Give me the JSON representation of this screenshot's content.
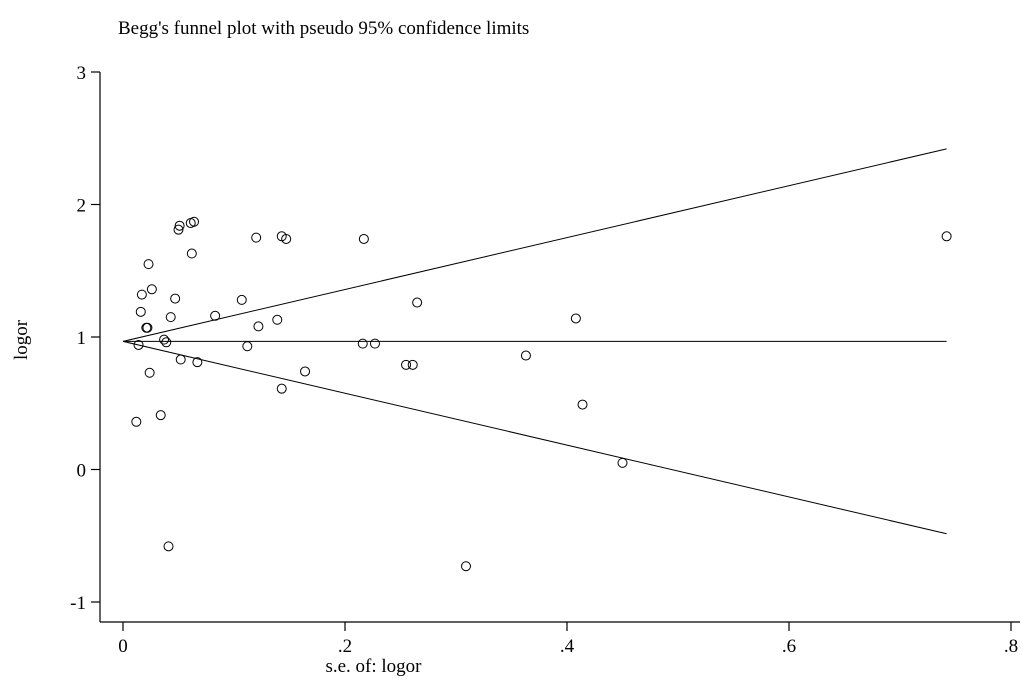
{
  "chart_data": {
    "type": "scatter",
    "title": "Begg's funnel plot with pseudo 95% confidence limits",
    "xlabel": "s.e. of: logor",
    "ylabel": "logor",
    "xlim": [
      0,
      0.8
    ],
    "ylim": [
      -1,
      3
    ],
    "xticks": [
      0,
      0.2,
      0.4,
      0.6,
      0.8
    ],
    "xtick_labels": [
      "0",
      ".2",
      ".4",
      ".6",
      ".8"
    ],
    "yticks": [
      -1,
      0,
      1,
      2,
      3
    ],
    "ytick_labels": [
      "-1",
      "0",
      "1",
      "2",
      "3"
    ],
    "grid": false,
    "pooled_estimate": 0.967,
    "funnel_x_max": 0.742,
    "funnel_upper_end": 2.42,
    "funnel_lower_end": -0.485,
    "points": [
      {
        "x": 0.012,
        "y": 0.36
      },
      {
        "x": 0.014,
        "y": 0.94
      },
      {
        "x": 0.016,
        "y": 1.19
      },
      {
        "x": 0.017,
        "y": 1.32
      },
      {
        "x": 0.021,
        "y": 1.07
      },
      {
        "x": 0.022,
        "y": 1.07
      },
      {
        "x": 0.023,
        "y": 1.55
      },
      {
        "x": 0.024,
        "y": 0.73
      },
      {
        "x": 0.026,
        "y": 1.36
      },
      {
        "x": 0.034,
        "y": 0.41
      },
      {
        "x": 0.037,
        "y": 0.98
      },
      {
        "x": 0.039,
        "y": 0.96
      },
      {
        "x": 0.041,
        "y": -0.58
      },
      {
        "x": 0.043,
        "y": 1.15
      },
      {
        "x": 0.047,
        "y": 1.29
      },
      {
        "x": 0.05,
        "y": 1.81
      },
      {
        "x": 0.051,
        "y": 1.84
      },
      {
        "x": 0.052,
        "y": 0.83
      },
      {
        "x": 0.061,
        "y": 1.86
      },
      {
        "x": 0.062,
        "y": 1.63
      },
      {
        "x": 0.064,
        "y": 1.87
      },
      {
        "x": 0.067,
        "y": 0.81
      },
      {
        "x": 0.083,
        "y": 1.16
      },
      {
        "x": 0.107,
        "y": 1.28
      },
      {
        "x": 0.112,
        "y": 0.93
      },
      {
        "x": 0.12,
        "y": 1.75
      },
      {
        "x": 0.122,
        "y": 1.08
      },
      {
        "x": 0.139,
        "y": 1.13
      },
      {
        "x": 0.143,
        "y": 1.76
      },
      {
        "x": 0.143,
        "y": 0.61
      },
      {
        "x": 0.147,
        "y": 1.74
      },
      {
        "x": 0.164,
        "y": 0.74
      },
      {
        "x": 0.216,
        "y": 0.95
      },
      {
        "x": 0.217,
        "y": 1.74
      },
      {
        "x": 0.227,
        "y": 0.95
      },
      {
        "x": 0.255,
        "y": 0.79
      },
      {
        "x": 0.261,
        "y": 0.79
      },
      {
        "x": 0.265,
        "y": 1.26
      },
      {
        "x": 0.309,
        "y": -0.73
      },
      {
        "x": 0.363,
        "y": 0.86
      },
      {
        "x": 0.408,
        "y": 1.14
      },
      {
        "x": 0.414,
        "y": 0.49
      },
      {
        "x": 0.45,
        "y": 0.05
      },
      {
        "x": 0.742,
        "y": 1.76
      }
    ]
  }
}
